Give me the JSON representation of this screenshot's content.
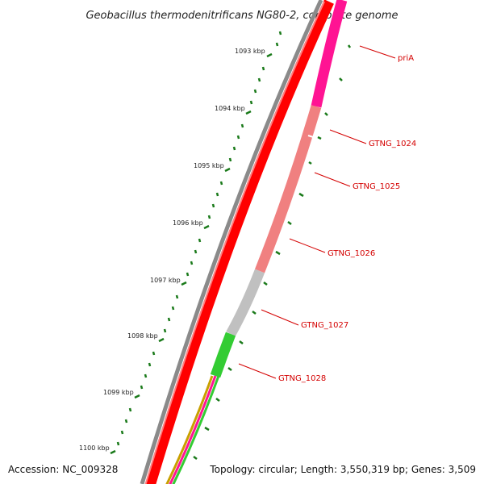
{
  "title": "Geobacillus thermodenitrificans NG80-2, complete genome",
  "ticks": [
    "1093 kbp",
    "1094 kbp",
    "1095 kbp",
    "1096 kbp",
    "1097 kbp",
    "1098 kbp",
    "1099 kbp",
    "1100 kbp"
  ],
  "genes": [
    "priA",
    "GTNG_1024",
    "GTNG_1025",
    "GTNG_1026",
    "GTNG_1027",
    "GTNG_1028"
  ],
  "footer": {
    "accession": "Accession: NC_009328",
    "summary": "Topology: circular; Length: 3,550,319 bp; Genes: 3,509"
  },
  "colors": {
    "backbone": "#8a8a8a",
    "cds_red": "#ff0000",
    "magenta": "#ff1493",
    "salmon": "#f08080",
    "gray_gene": "#c0c0c0",
    "green_gene": "#33cc33",
    "tick_green": "#1a7a1a",
    "label_red": "#d40000"
  }
}
